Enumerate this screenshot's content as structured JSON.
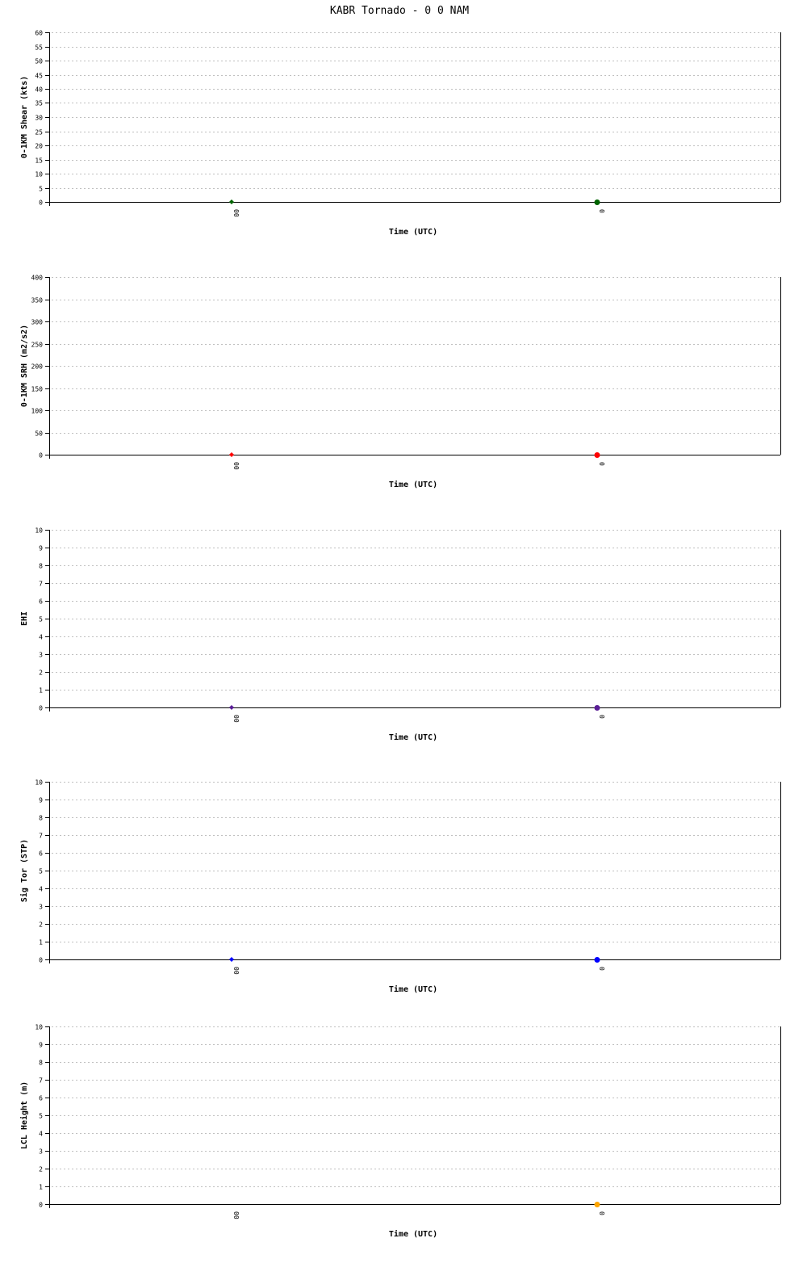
{
  "title": "KABR Tornado - 0 0 NAM",
  "chart_data": [
    {
      "type": "scatter",
      "ylabel": "0-1KM Shear (kts)",
      "xlabel": "Time (UTC)",
      "ylim": [
        0,
        60
      ],
      "yticks": [
        "0",
        "5",
        "10",
        "15",
        "20",
        "25",
        "30",
        "35",
        "40",
        "45",
        "50",
        "55",
        "60"
      ],
      "xcategories": [
        "00",
        "0"
      ],
      "grid": true,
      "color": "#006400",
      "values": [
        0,
        0
      ]
    },
    {
      "type": "scatter",
      "ylabel": "0-1KM SRH (m2/s2)",
      "xlabel": "Time (UTC)",
      "ylim": [
        0,
        400
      ],
      "yticks": [
        "0",
        "50",
        "100",
        "150",
        "200",
        "250",
        "300",
        "350",
        "400"
      ],
      "xcategories": [
        "00",
        "0"
      ],
      "grid": true,
      "color": "#ff0000",
      "values": [
        0,
        0
      ]
    },
    {
      "type": "scatter",
      "ylabel": "EHI",
      "xlabel": "Time (UTC)",
      "ylim": [
        0,
        10
      ],
      "yticks": [
        "0",
        "1",
        "2",
        "3",
        "4",
        "5",
        "6",
        "7",
        "8",
        "9",
        "10"
      ],
      "xcategories": [
        "00",
        "0"
      ],
      "grid": true,
      "color": "#5a1e96",
      "values": [
        0,
        0
      ]
    },
    {
      "type": "scatter",
      "ylabel": "Sig Tor (STP)",
      "xlabel": "Time (UTC)",
      "ylim": [
        0,
        10
      ],
      "yticks": [
        "0",
        "1",
        "2",
        "3",
        "4",
        "5",
        "6",
        "7",
        "8",
        "9",
        "10"
      ],
      "xcategories": [
        "00",
        "0"
      ],
      "grid": true,
      "color": "#0000ff",
      "values": [
        0,
        0
      ]
    },
    {
      "type": "scatter",
      "ylabel": "LCL Height (m)",
      "xlabel": "Time (UTC)",
      "ylim": [
        0,
        10
      ],
      "yticks": [
        "0",
        "1",
        "2",
        "3",
        "4",
        "5",
        "6",
        "7",
        "8",
        "9",
        "10"
      ],
      "xcategories": [
        "00",
        "0"
      ],
      "grid": true,
      "color": "#ffa500",
      "values": [
        null,
        0
      ]
    }
  ]
}
